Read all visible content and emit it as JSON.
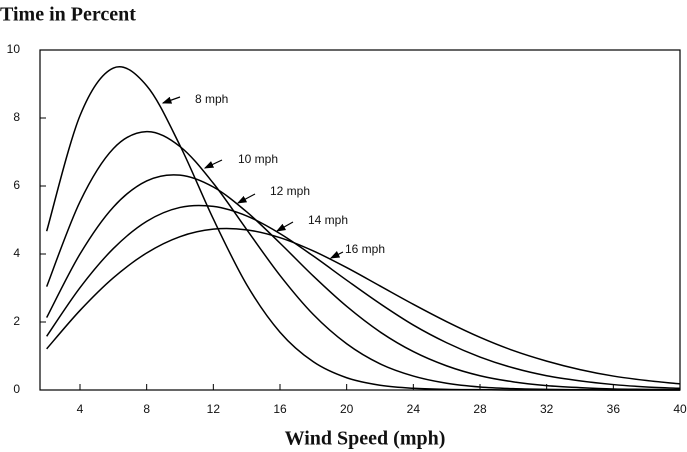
{
  "chart_data": {
    "type": "line",
    "title": "Time in Percent",
    "x_label": "Wind Speed (mph)",
    "x": [
      2,
      4,
      6,
      8,
      10,
      12,
      14,
      16,
      18,
      20,
      22,
      24,
      26,
      28,
      30,
      32,
      34,
      36,
      38,
      40
    ],
    "series": [
      {
        "name": "8 mph",
        "color": "#000000",
        "values": [
          4.67,
          8.07,
          9.47,
          8.95,
          7.19,
          5.03,
          3.1,
          1.7,
          0.83,
          0.36,
          0.14,
          0.05,
          0.02,
          0.01,
          0,
          0,
          0,
          0,
          0,
          0
        ]
      },
      {
        "name": "10 mph",
        "color": "#000000",
        "values": [
          3.04,
          5.54,
          7.1,
          7.6,
          7.16,
          6.08,
          4.72,
          3.37,
          2.22,
          1.36,
          0.77,
          0.41,
          0.2,
          0.09,
          0.04,
          0.02,
          0.01,
          0,
          0,
          0
        ]
      },
      {
        "name": "12 mph",
        "color": "#000000",
        "values": [
          2.13,
          4.0,
          5.38,
          6.15,
          6.32,
          5.97,
          5.24,
          4.32,
          3.35,
          2.46,
          1.71,
          1.13,
          0.71,
          0.42,
          0.24,
          0.13,
          0.07,
          0.03,
          0.02,
          0.01
        ]
      },
      {
        "name": "14 mph",
        "color": "#000000",
        "values": [
          1.58,
          3.01,
          4.16,
          4.96,
          5.37,
          5.4,
          5.12,
          4.6,
          3.94,
          3.23,
          2.54,
          1.91,
          1.39,
          0.97,
          0.65,
          0.42,
          0.27,
          0.16,
          0.09,
          0.05
        ]
      },
      {
        "name": "16 mph",
        "color": "#000000",
        "values": [
          1.21,
          2.34,
          3.3,
          4.03,
          4.51,
          4.73,
          4.71,
          4.48,
          4.09,
          3.6,
          3.06,
          2.52,
          2.01,
          1.55,
          1.16,
          0.85,
          0.6,
          0.41,
          0.28,
          0.18
        ]
      }
    ],
    "xlim": [
      1.6,
      40
    ],
    "xticks": [
      4,
      8,
      12,
      16,
      20,
      24,
      28,
      32,
      36,
      40
    ],
    "ylim": [
      0,
      10
    ],
    "yticks": [
      0,
      2,
      4,
      6,
      8,
      10
    ],
    "grid": false
  }
}
